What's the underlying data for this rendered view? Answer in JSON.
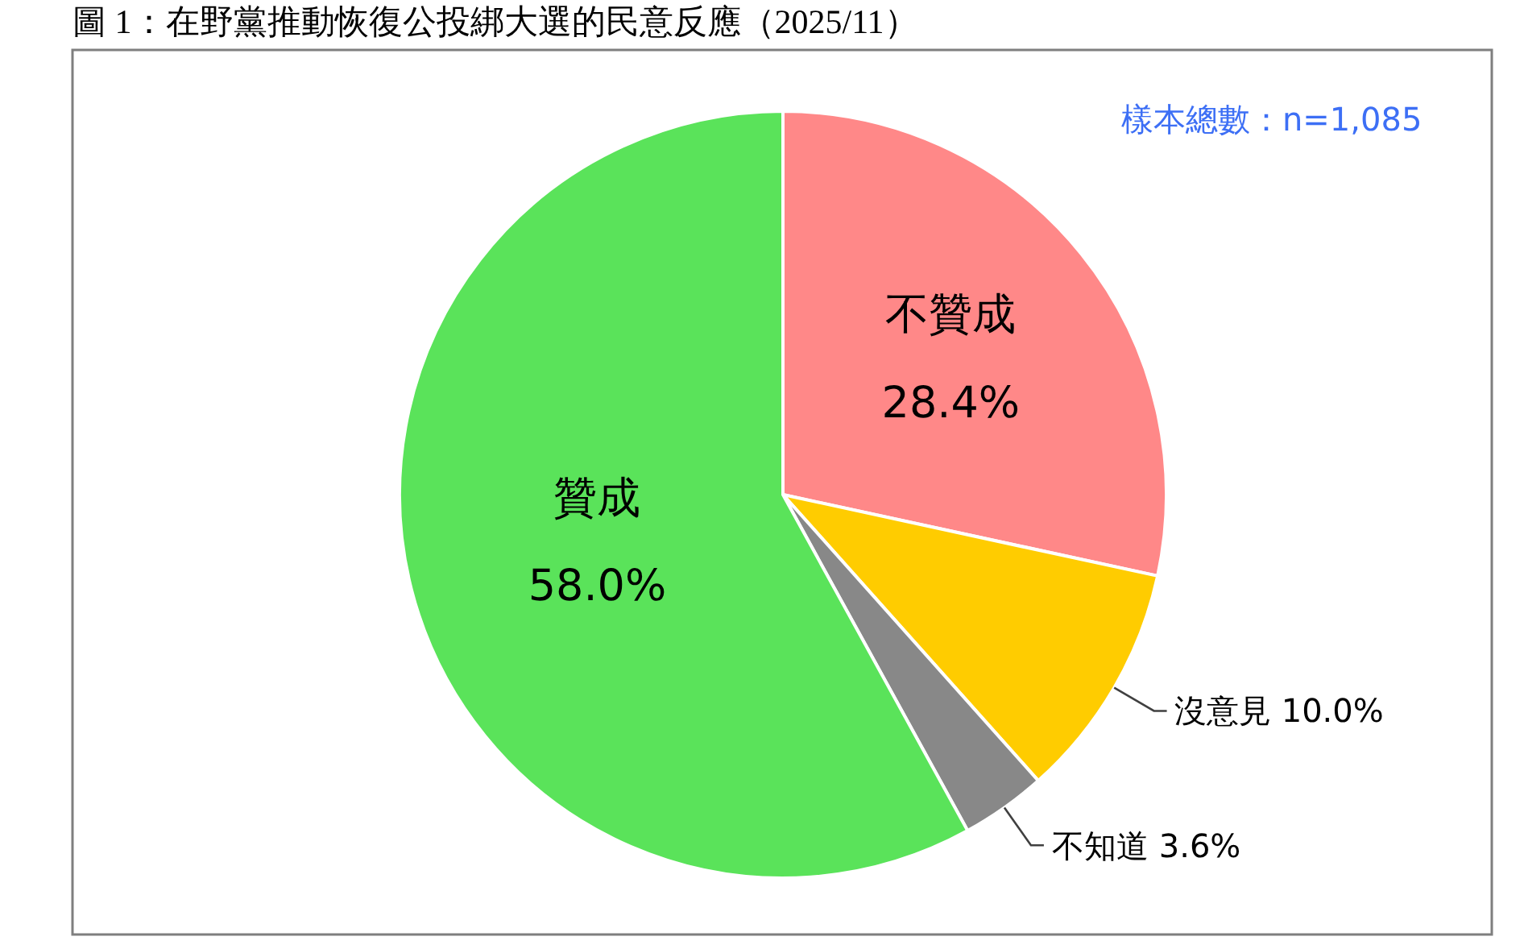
{
  "chart_data": {
    "type": "pie",
    "title": "圖 1：在野黨推動恢復公投綁大選的民意反應（2025/11）",
    "annotations": [
      "樣本總數：n=1,085"
    ],
    "categories": [
      "不贊成",
      "沒意見",
      "不知道",
      "贊成"
    ],
    "values": [
      28.4,
      10.0,
      3.6,
      58.0
    ],
    "colors": [
      "#ff8888",
      "#ffcc00",
      "#888888",
      "#5ae35a"
    ],
    "value_labels": [
      "28.4%",
      "10.0%",
      "3.6%",
      "58.0%"
    ]
  }
}
